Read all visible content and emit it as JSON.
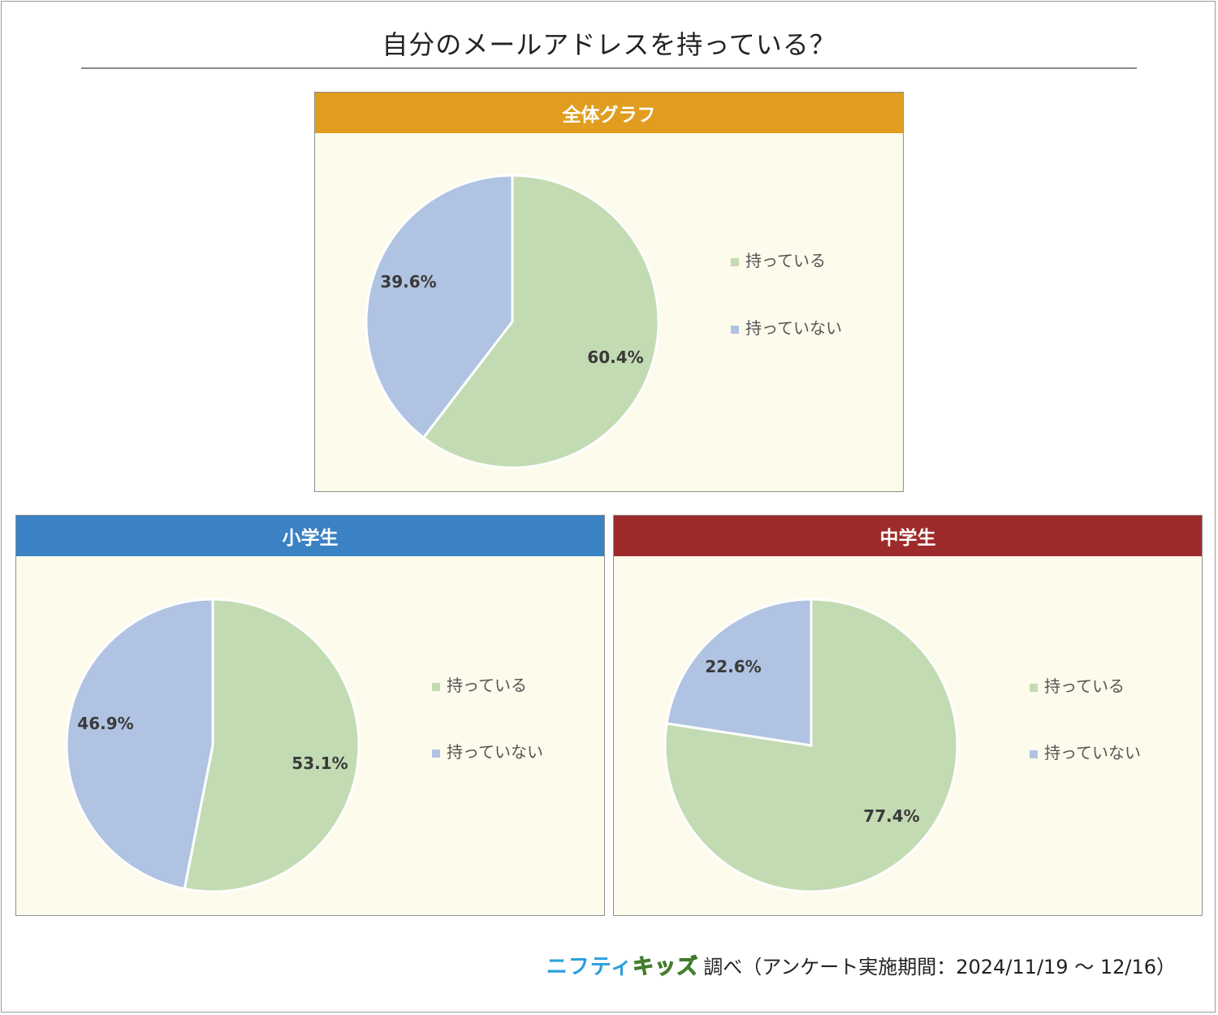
{
  "title": "自分のメールアドレスを持っている？",
  "colors": {
    "has": "#c3dbb2",
    "has_not": "#b1c3e2",
    "header_overall": "#e09d1f",
    "header_elementary": "#3b82c4",
    "header_junior": "#9e2b2b",
    "panel_bg": "#fdfbec"
  },
  "chart_data": [
    {
      "type": "pie",
      "title": "全体グラフ",
      "categories": [
        "持っている",
        "持っていない"
      ],
      "values": [
        60.4,
        39.6
      ],
      "labels": [
        "60.4%",
        "39.6%"
      ],
      "legend": "right"
    },
    {
      "type": "pie",
      "title": "小学生",
      "categories": [
        "持っている",
        "持っていない"
      ],
      "values": [
        53.1,
        46.9
      ],
      "labels": [
        "53.1%",
        "46.9%"
      ],
      "legend": "right"
    },
    {
      "type": "pie",
      "title": "中学生",
      "categories": [
        "持っている",
        "持っていない"
      ],
      "values": [
        77.4,
        22.6
      ],
      "labels": [
        "77.4%",
        "22.6%"
      ],
      "legend": "right"
    }
  ],
  "footer": {
    "brand_part1": "ニフティ",
    "brand_part2": "キッ",
    "brand_part3": "ズ",
    "text": "調べ（アンケート実施期間：2024/11/19 ～ 12/16）"
  }
}
